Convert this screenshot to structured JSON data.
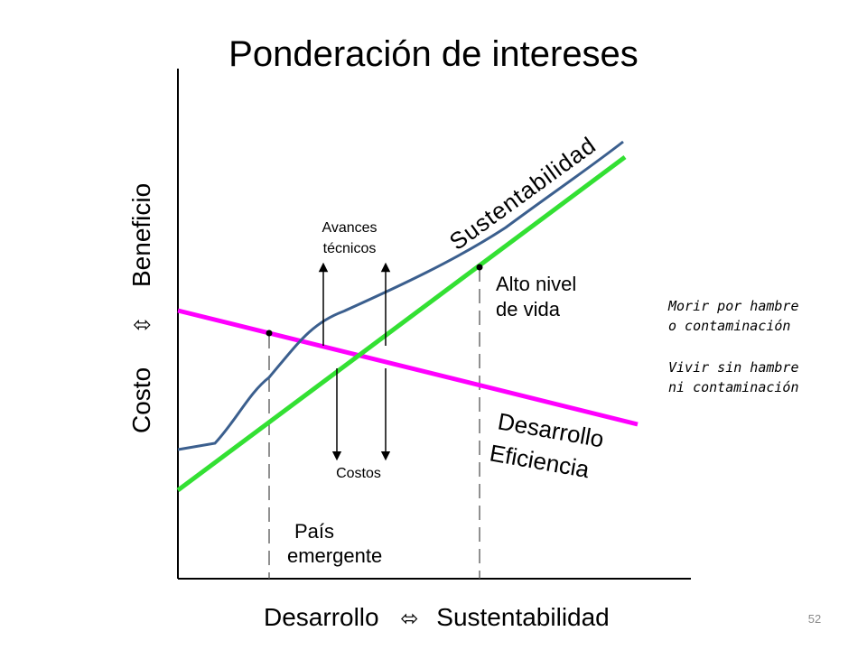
{
  "slide": {
    "title": "Ponderación de intereses",
    "page_number": "52"
  },
  "axes": {
    "x_left": "Desarrollo",
    "x_symbol": "⬄",
    "x_right": "Sustentabilidad",
    "y_bottom": "Costo",
    "y_symbol": "⇳",
    "y_top": "Beneficio"
  },
  "curves": {
    "sustentabilidad": {
      "label": "Sustentabilidad",
      "color": "#3b5f8e"
    },
    "desarrollo": {
      "label_line1": "Desarrollo",
      "label_line2": "Eficiencia",
      "color": "#ff00ff"
    },
    "green_line_color": "#33e033"
  },
  "annotations": {
    "avances_line1": "Avances",
    "avances_line2": "técnicos",
    "costos": "Costos",
    "alto_line1": "Alto nivel",
    "alto_line2": "de vida",
    "pais_line1": "País",
    "pais_line2": "emergente"
  },
  "notes": {
    "morir_line1": "Morir por hambre",
    "morir_line2": "o contaminación",
    "vivir_line1": "Vivir sin hambre",
    "vivir_line2": "ni contaminación"
  }
}
